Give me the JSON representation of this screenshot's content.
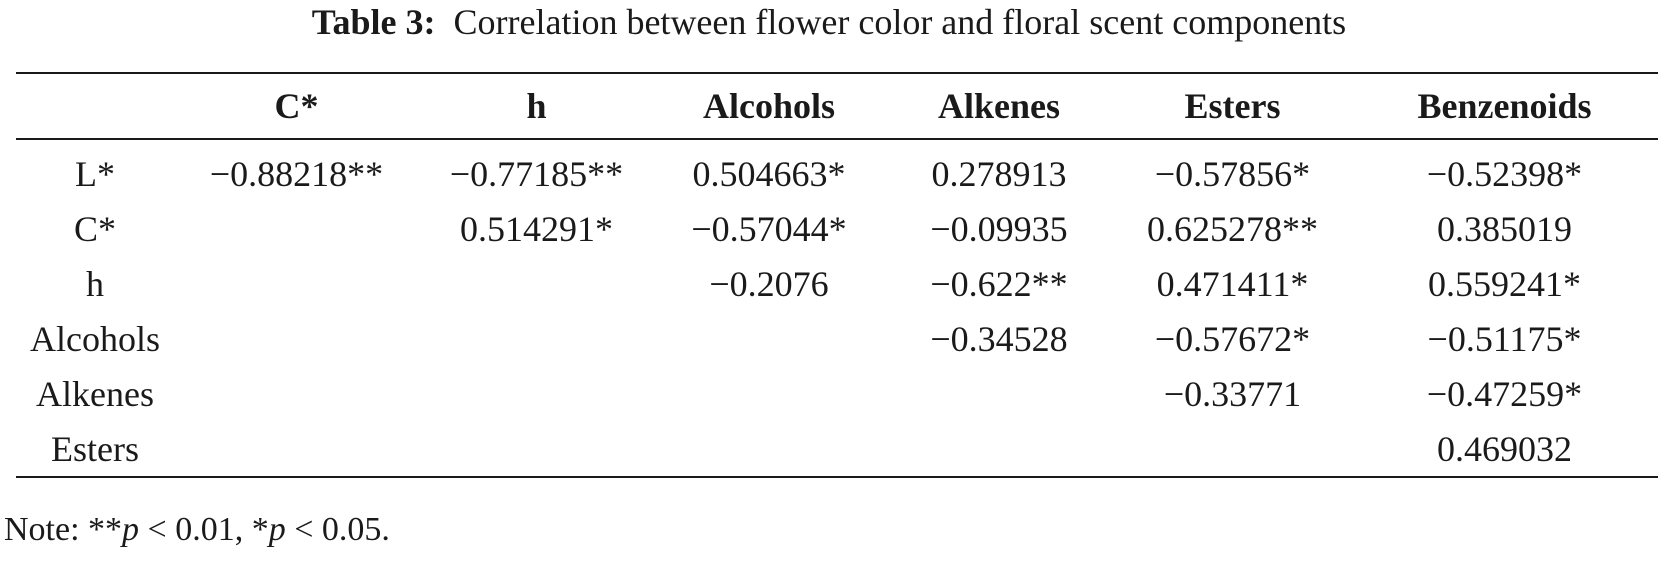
{
  "caption": {
    "label": "Table 3:",
    "text": "Correlation between flower color and floral scent components"
  },
  "table": {
    "headers": [
      "",
      "C*",
      "h",
      "Alcohols",
      "Alkenes",
      "Esters",
      "Benzenoids"
    ],
    "rows": [
      [
        "L*",
        "−0.88218**",
        "−0.77185**",
        "0.504663*",
        "0.278913",
        "−0.57856*",
        "−0.52398*"
      ],
      [
        "C*",
        "",
        "0.514291*",
        "−0.57044*",
        "−0.09935",
        "0.625278**",
        "0.385019"
      ],
      [
        "h",
        "",
        "",
        "−0.2076",
        "−0.622**",
        "0.471411*",
        "0.559241*"
      ],
      [
        "Alcohols",
        "",
        "",
        "",
        "−0.34528",
        "−0.57672*",
        "−0.51175*"
      ],
      [
        "Alkenes",
        "",
        "",
        "",
        "",
        "−0.33771",
        "−0.47259*"
      ],
      [
        "Esters",
        "",
        "",
        "",
        "",
        "",
        "0.469032"
      ]
    ]
  },
  "note": {
    "prefix": "Note: ",
    "sig1_stars": "**",
    "sig1_var": "p",
    "sig1_rest": " < 0.01, ",
    "sig2_stars": "*",
    "sig2_var": "p",
    "sig2_rest": " < 0.05."
  }
}
